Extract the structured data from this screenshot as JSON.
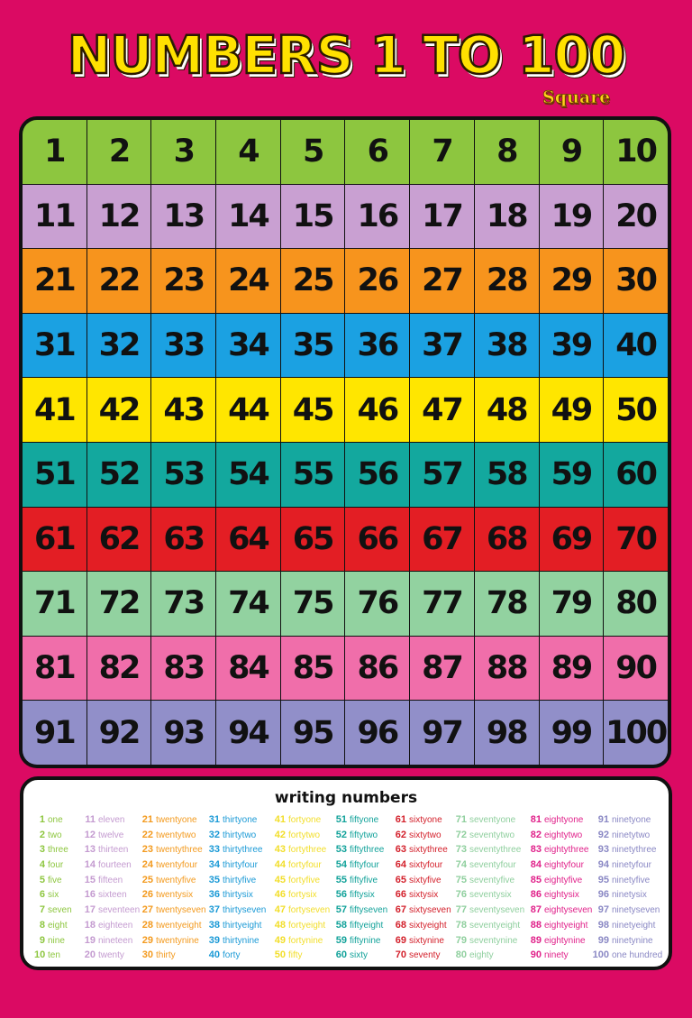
{
  "title": "NUMBERS 1 TO 100",
  "subtitle": "Square",
  "row_colors": [
    "#8dc63f",
    "#c9a0d2",
    "#f7941d",
    "#1ba1e2",
    "#ffe600",
    "#13a89e",
    "#e31e24",
    "#92d2a0",
    "#f06eaa",
    "#918fc9"
  ],
  "grid": [
    [
      "1",
      "2",
      "3",
      "4",
      "5",
      "6",
      "7",
      "8",
      "9",
      "10"
    ],
    [
      "11",
      "12",
      "13",
      "14",
      "15",
      "16",
      "17",
      "18",
      "19",
      "20"
    ],
    [
      "21",
      "22",
      "23",
      "24",
      "25",
      "26",
      "27",
      "28",
      "29",
      "30"
    ],
    [
      "31",
      "32",
      "33",
      "34",
      "35",
      "36",
      "37",
      "38",
      "39",
      "40"
    ],
    [
      "41",
      "42",
      "43",
      "44",
      "45",
      "46",
      "47",
      "48",
      "49",
      "50"
    ],
    [
      "51",
      "52",
      "53",
      "54",
      "55",
      "56",
      "57",
      "58",
      "59",
      "60"
    ],
    [
      "61",
      "62",
      "63",
      "64",
      "65",
      "66",
      "67",
      "68",
      "69",
      "70"
    ],
    [
      "71",
      "72",
      "73",
      "74",
      "75",
      "76",
      "77",
      "78",
      "79",
      "80"
    ],
    [
      "81",
      "82",
      "83",
      "84",
      "85",
      "86",
      "87",
      "88",
      "89",
      "90"
    ],
    [
      "91",
      "92",
      "93",
      "94",
      "95",
      "96",
      "97",
      "98",
      "99",
      "100"
    ]
  ],
  "writing": {
    "title": "writing numbers",
    "column_colors": [
      "#8dc63f",
      "#c49bd0",
      "#f39a1e",
      "#1b9ad6",
      "#f2de2a",
      "#12a29a",
      "#d31f2a",
      "#8fcf9e",
      "#e0218a",
      "#8a88c4"
    ],
    "columns": [
      [
        [
          "1",
          "one"
        ],
        [
          "2",
          "two"
        ],
        [
          "3",
          "three"
        ],
        [
          "4",
          "four"
        ],
        [
          "5",
          "five"
        ],
        [
          "6",
          "six"
        ],
        [
          "7",
          "seven"
        ],
        [
          "8",
          "eight"
        ],
        [
          "9",
          "nine"
        ],
        [
          "10",
          "ten"
        ]
      ],
      [
        [
          "11",
          "eleven"
        ],
        [
          "12",
          "twelve"
        ],
        [
          "13",
          "thirteen"
        ],
        [
          "14",
          "fourteen"
        ],
        [
          "15",
          "fifteen"
        ],
        [
          "16",
          "sixteen"
        ],
        [
          "17",
          "seventeen"
        ],
        [
          "18",
          "eighteen"
        ],
        [
          "19",
          "nineteen"
        ],
        [
          "20",
          "twenty"
        ]
      ],
      [
        [
          "21",
          "twentyone"
        ],
        [
          "22",
          "twentytwo"
        ],
        [
          "23",
          "twentythree"
        ],
        [
          "24",
          "twentyfour"
        ],
        [
          "25",
          "twentyfive"
        ],
        [
          "26",
          "twentysix"
        ],
        [
          "27",
          "twentyseven"
        ],
        [
          "28",
          "twentyeight"
        ],
        [
          "29",
          "twentynine"
        ],
        [
          "30",
          "thirty"
        ]
      ],
      [
        [
          "31",
          "thirtyone"
        ],
        [
          "32",
          "thirtytwo"
        ],
        [
          "33",
          "thirtythree"
        ],
        [
          "34",
          "thirtyfour"
        ],
        [
          "35",
          "thirtyfive"
        ],
        [
          "36",
          "thirtysix"
        ],
        [
          "37",
          "thirtyseven"
        ],
        [
          "38",
          "thirtyeight"
        ],
        [
          "39",
          "thirtynine"
        ],
        [
          "40",
          "forty"
        ]
      ],
      [
        [
          "41",
          "fortyone"
        ],
        [
          "42",
          "fortytwo"
        ],
        [
          "43",
          "fortythree"
        ],
        [
          "44",
          "fortyfour"
        ],
        [
          "45",
          "fortyfive"
        ],
        [
          "46",
          "fortysix"
        ],
        [
          "47",
          "fortyseven"
        ],
        [
          "48",
          "fortyeight"
        ],
        [
          "49",
          "fortynine"
        ],
        [
          "50",
          "fifty"
        ]
      ],
      [
        [
          "51",
          "fiftyone"
        ],
        [
          "52",
          "fiftytwo"
        ],
        [
          "53",
          "fiftythree"
        ],
        [
          "54",
          "fiftyfour"
        ],
        [
          "55",
          "fiftyfive"
        ],
        [
          "56",
          "fiftysix"
        ],
        [
          "57",
          "fiftyseven"
        ],
        [
          "58",
          "fiftyeight"
        ],
        [
          "59",
          "fiftynine"
        ],
        [
          "60",
          "sixty"
        ]
      ],
      [
        [
          "61",
          "sixtyone"
        ],
        [
          "62",
          "sixtytwo"
        ],
        [
          "63",
          "sixtythree"
        ],
        [
          "64",
          "sixtyfour"
        ],
        [
          "65",
          "sixtyfive"
        ],
        [
          "66",
          "sixtysix"
        ],
        [
          "67",
          "sixtyseven"
        ],
        [
          "68",
          "sixtyeight"
        ],
        [
          "69",
          "sixtynine"
        ],
        [
          "70",
          "seventy"
        ]
      ],
      [
        [
          "71",
          "seventyone"
        ],
        [
          "72",
          "seventytwo"
        ],
        [
          "73",
          "seventythree"
        ],
        [
          "74",
          "seventyfour"
        ],
        [
          "75",
          "seventyfive"
        ],
        [
          "76",
          "seventysix"
        ],
        [
          "77",
          "seventyseven"
        ],
        [
          "78",
          "seventyeight"
        ],
        [
          "79",
          "seventynine"
        ],
        [
          "80",
          "eighty"
        ]
      ],
      [
        [
          "81",
          "eightyone"
        ],
        [
          "82",
          "eightytwo"
        ],
        [
          "83",
          "eightythree"
        ],
        [
          "84",
          "eightyfour"
        ],
        [
          "85",
          "eightyfive"
        ],
        [
          "86",
          "eightysix"
        ],
        [
          "87",
          "eightyseven"
        ],
        [
          "88",
          "eightyeight"
        ],
        [
          "89",
          "eightynine"
        ],
        [
          "90",
          "ninety"
        ]
      ],
      [
        [
          "91",
          "ninetyone"
        ],
        [
          "92",
          "ninetytwo"
        ],
        [
          "93",
          "ninetythree"
        ],
        [
          "94",
          "ninetyfour"
        ],
        [
          "95",
          "ninetyfive"
        ],
        [
          "96",
          "ninetysix"
        ],
        [
          "97",
          "ninetyseven"
        ],
        [
          "98",
          "ninetyeight"
        ],
        [
          "99",
          "ninetynine"
        ],
        [
          "100",
          "one hundred"
        ]
      ]
    ]
  }
}
